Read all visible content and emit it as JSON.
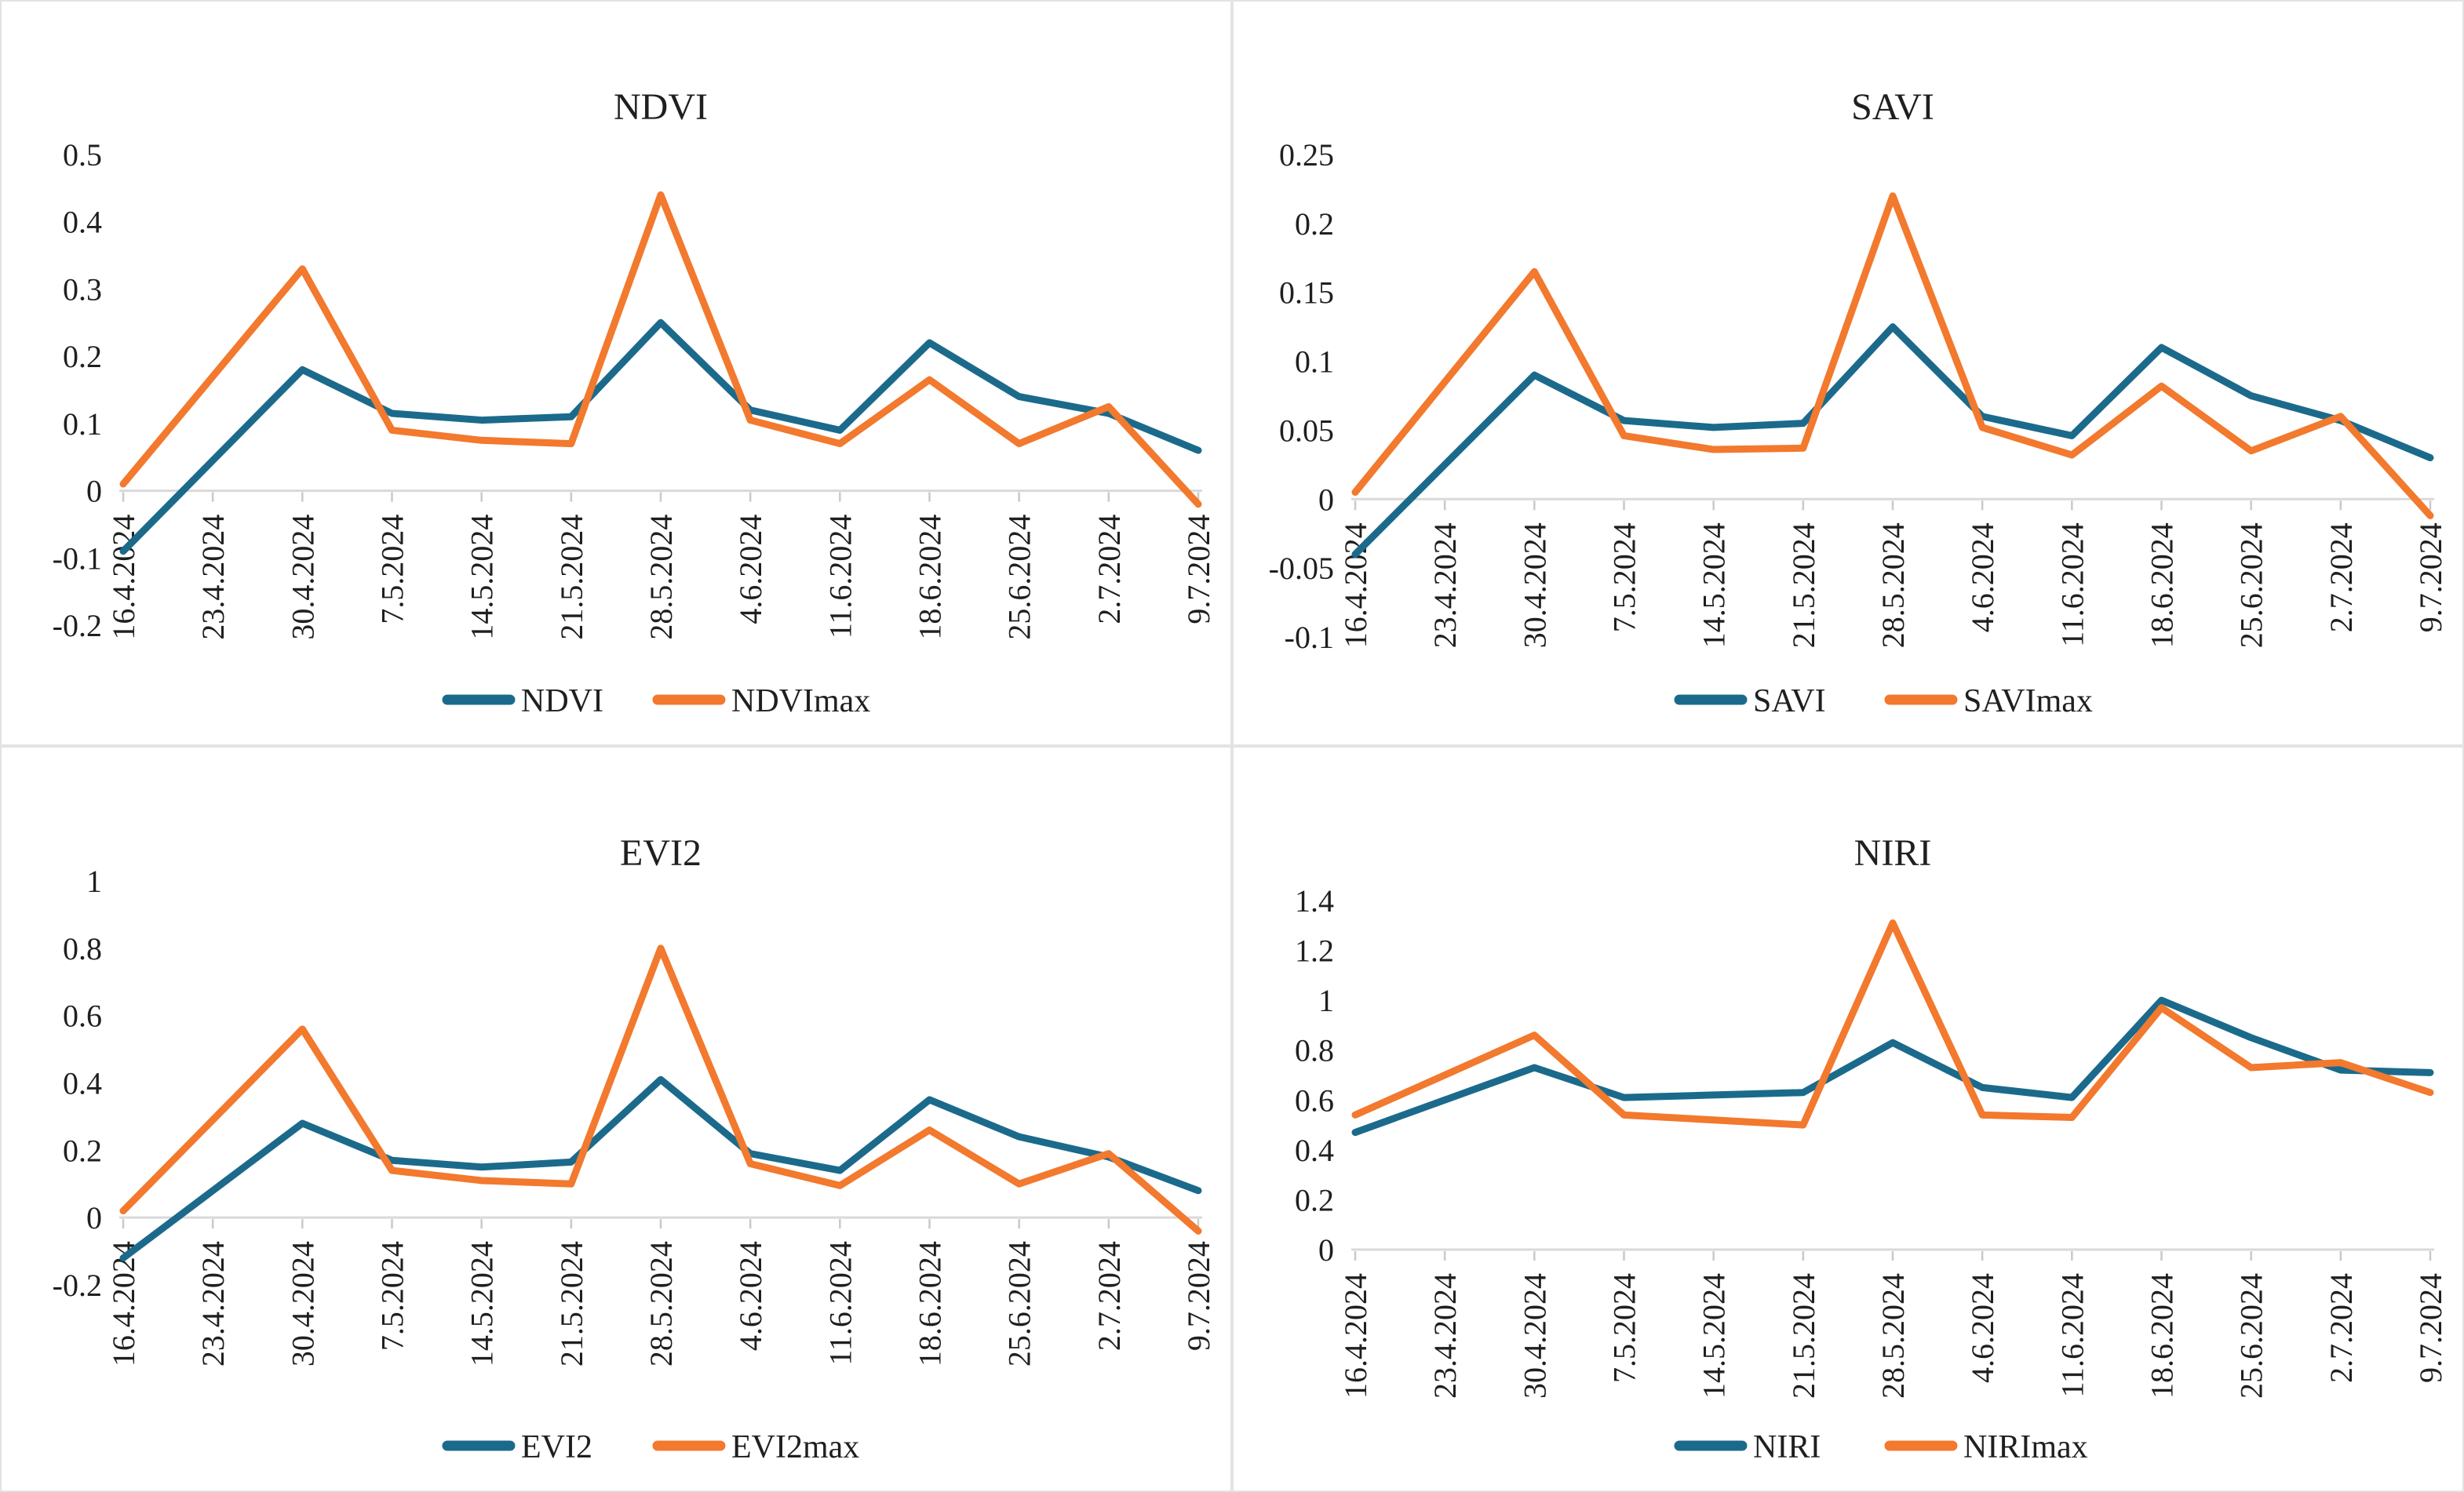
{
  "figure": {
    "description": "2x2 grid of weekly vegetation-index line charts",
    "accent_series1_color": "#1c6a8b",
    "accent_series2_color": "#f2792d",
    "axis_line_color": "#d9d9d9",
    "tick_mark_color": "#c9c9c9",
    "text_color": "#1f1f1f"
  },
  "categories": [
    "16.4.2024",
    "23.4.2024",
    "30.4.2024",
    "7.5.2024",
    "14.5.2024",
    "21.5.2024",
    "28.5.2024",
    "4.6.2024",
    "11.6.2024",
    "18.6.2024",
    "25.6.2024",
    "2.7.2024",
    "9.7.2024"
  ],
  "chart_data": [
    {
      "type": "line",
      "title": "NDVI",
      "ylim": [
        -0.2,
        0.5
      ],
      "yticks": [
        "0.5",
        "0.4",
        "0.3",
        "0.2",
        "0.1",
        "0",
        "-0.1",
        "-0.2"
      ],
      "grid": false,
      "legend_position": "bottom",
      "legend": [
        "NDVI",
        "NDVImax"
      ],
      "series": [
        {
          "name": "NDVI",
          "color": "#1c6a8b",
          "values": [
            -0.09,
            0.045,
            0.18,
            0.115,
            0.105,
            0.11,
            0.25,
            0.12,
            0.09,
            0.22,
            0.14,
            0.115,
            0.06
          ]
        },
        {
          "name": "NDVImax",
          "color": "#f2792d",
          "values": [
            0.01,
            0.17,
            0.33,
            0.09,
            0.075,
            0.07,
            0.44,
            0.105,
            0.07,
            0.165,
            0.07,
            0.125,
            -0.02
          ]
        }
      ]
    },
    {
      "type": "line",
      "title": "SAVI",
      "ylim": [
        -0.1,
        0.25
      ],
      "yticks": [
        "0.25",
        "0.2",
        "0.15",
        "0.1",
        "0.05",
        "0",
        "-0.05",
        "-0.1"
      ],
      "grid": false,
      "legend_position": "bottom",
      "legend": [
        "SAVI",
        "SAVImax"
      ],
      "series": [
        {
          "name": "SAVI",
          "color": "#1c6a8b",
          "values": [
            -0.04,
            0.025,
            0.09,
            0.057,
            0.052,
            0.055,
            0.125,
            0.06,
            0.046,
            0.11,
            0.075,
            0.057,
            0.03
          ]
        },
        {
          "name": "SAVImax",
          "color": "#f2792d",
          "values": [
            0.005,
            0.085,
            0.165,
            0.046,
            0.036,
            0.037,
            0.22,
            0.052,
            0.032,
            0.082,
            0.035,
            0.06,
            -0.012
          ]
        }
      ]
    },
    {
      "type": "line",
      "title": "EVI2",
      "ylim": [
        -0.2,
        1.0
      ],
      "yticks": [
        "1",
        "0.8",
        "0.6",
        "0.4",
        "0.2",
        "0",
        "-0.2"
      ],
      "grid": false,
      "legend_position": "bottom",
      "legend": [
        "EVI2",
        "EVI2max"
      ],
      "series": [
        {
          "name": "EVI2",
          "color": "#1c6a8b",
          "values": [
            -0.12,
            0.08,
            0.28,
            0.17,
            0.15,
            0.165,
            0.41,
            0.19,
            0.14,
            0.35,
            0.24,
            0.18,
            0.08
          ]
        },
        {
          "name": "EVI2max",
          "color": "#f2792d",
          "values": [
            0.02,
            0.29,
            0.56,
            0.14,
            0.11,
            0.1,
            0.8,
            0.16,
            0.095,
            0.26,
            0.1,
            0.19,
            -0.04
          ]
        }
      ]
    },
    {
      "type": "line",
      "title": "NIRI",
      "ylim": [
        0,
        1.4
      ],
      "yticks": [
        "1.4",
        "1.2",
        "1",
        "0.8",
        "0.6",
        "0.4",
        "0.2",
        "0"
      ],
      "grid": false,
      "legend_position": "bottom",
      "legend": [
        "NIRI",
        "NIRImax"
      ],
      "series": [
        {
          "name": "NIRI",
          "color": "#1c6a8b",
          "values": [
            0.47,
            0.6,
            0.73,
            0.61,
            0.62,
            0.63,
            0.83,
            0.65,
            0.61,
            1.0,
            0.85,
            0.72,
            0.71
          ]
        },
        {
          "name": "NIRImax",
          "color": "#f2792d",
          "values": [
            0.54,
            0.7,
            0.86,
            0.54,
            0.52,
            0.5,
            1.31,
            0.54,
            0.53,
            0.97,
            0.73,
            0.75,
            0.63
          ]
        }
      ]
    }
  ]
}
